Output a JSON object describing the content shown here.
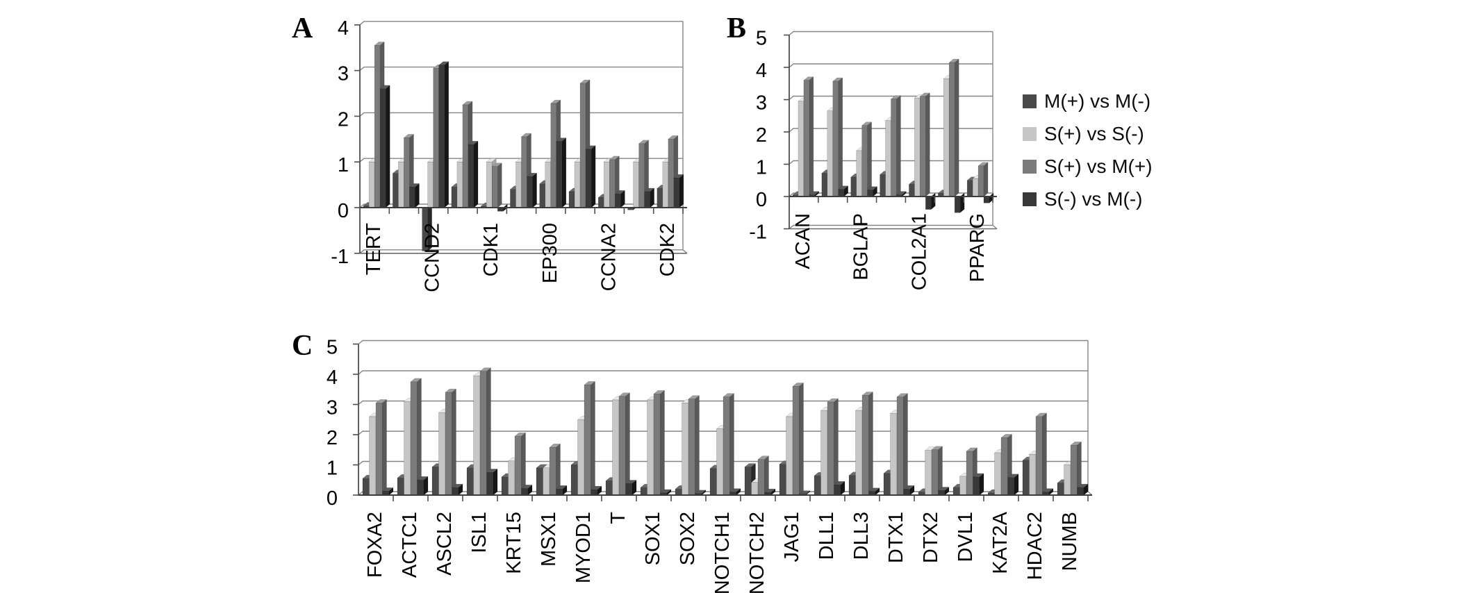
{
  "figure": {
    "panel_letters": {
      "a": "A",
      "b": "B",
      "c": "C"
    }
  },
  "legend": {
    "position": "right-of-panel-b",
    "items": [
      {
        "label": "M(+) vs M(-)",
        "color": "#4a4a4a"
      },
      {
        "label": "S(+) vs S(-)",
        "color": "#c6c6c6"
      },
      {
        "label": "S(+) vs M(+)",
        "color": "#7b7b7b"
      },
      {
        "label": "S(-) vs M(-)",
        "color": "#383838"
      }
    ]
  },
  "chart_data": [
    {
      "panel_letter": "A",
      "type": "bar",
      "bar_style": "3d-clustered",
      "grid": true,
      "ylim": [
        -1,
        4
      ],
      "yticks": [
        4,
        3,
        2,
        1,
        0,
        -1
      ],
      "categories": [
        "TERT",
        "",
        "CCND2",
        "",
        "CDK1",
        "",
        "EP300",
        "",
        "CCNA2",
        "",
        "CDK2"
      ],
      "series": [
        {
          "name": "M(+) vs M(-)",
          "color": "#4a4a4a",
          "values": [
            0.04,
            0.75,
            -0.95,
            0.45,
            0.03,
            0.4,
            0.52,
            0.35,
            0.22,
            -0.05,
            0.42
          ]
        },
        {
          "name": "S(+) vs S(-)",
          "color": "#c6c6c6",
          "values": [
            1.0,
            1.0,
            1.0,
            1.0,
            1.0,
            1.0,
            1.0,
            1.0,
            1.0,
            1.0,
            1.0
          ]
        },
        {
          "name": "S(+) vs M(+)",
          "color": "#7b7b7b",
          "values": [
            3.55,
            1.53,
            3.05,
            2.25,
            0.9,
            1.55,
            2.28,
            2.72,
            1.05,
            1.4,
            1.5
          ]
        },
        {
          "name": "S(-) vs M(-)",
          "color": "#383838",
          "values": [
            2.6,
            0.45,
            3.12,
            1.38,
            -0.08,
            0.68,
            1.45,
            1.28,
            0.3,
            0.35,
            0.65
          ]
        }
      ]
    },
    {
      "panel_letter": "B",
      "type": "bar",
      "bar_style": "3d-clustered",
      "grid": true,
      "ylim": [
        -1,
        5
      ],
      "yticks": [
        5,
        4,
        3,
        2,
        1,
        0,
        -1
      ],
      "categories": [
        "ACAN",
        "",
        "BGLAP",
        "",
        "COL2A1",
        "",
        "PPARG"
      ],
      "series": [
        {
          "name": "M(+) vs M(-)",
          "color": "#4a4a4a",
          "values": [
            0.05,
            0.72,
            0.6,
            0.68,
            0.38,
            0.1,
            0.5
          ]
        },
        {
          "name": "S(+) vs S(-)",
          "color": "#c6c6c6",
          "values": [
            2.95,
            2.65,
            1.42,
            2.35,
            3.05,
            3.65,
            0.55
          ]
        },
        {
          "name": "S(+) vs M(+)",
          "color": "#7b7b7b",
          "values": [
            3.6,
            3.57,
            2.2,
            3.02,
            3.1,
            4.15,
            0.95
          ]
        },
        {
          "name": "S(-) vs M(-)",
          "color": "#383838",
          "values": [
            0.05,
            0.22,
            0.2,
            0.05,
            -0.4,
            -0.5,
            -0.2
          ]
        }
      ]
    },
    {
      "panel_letter": "C",
      "type": "bar",
      "bar_style": "3d-clustered",
      "grid": true,
      "ylim": [
        0,
        5
      ],
      "yticks": [
        5,
        4,
        3,
        2,
        1,
        0
      ],
      "categories": [
        "FOXA2",
        "ACTC1",
        "ASCL2",
        "ISL1",
        "KRT15",
        "MSX1",
        "MYOD1",
        "T",
        "SOX1",
        "SOX2",
        "NOTCH1",
        "NOTCH2",
        "JAG1",
        "DLL1",
        "DLL3",
        "DTX1",
        "DTX2",
        "DVL1",
        "KAT2A",
        "HDAC2",
        "NUMB"
      ],
      "series": [
        {
          "name": "M(+) vs M(-)",
          "color": "#4a4a4a",
          "values": [
            0.55,
            0.57,
            0.93,
            0.9,
            0.6,
            0.9,
            1.0,
            0.47,
            0.25,
            0.2,
            0.88,
            0.93,
            1.02,
            0.64,
            0.65,
            0.72,
            0.1,
            0.25,
            0.07,
            1.15,
            0.4
          ]
        },
        {
          "name": "S(+) vs S(-)",
          "color": "#c6c6c6",
          "values": [
            2.6,
            3.1,
            2.73,
            3.95,
            1.13,
            0.9,
            2.5,
            3.15,
            3.15,
            3.05,
            2.2,
            0.42,
            2.6,
            2.8,
            2.8,
            2.7,
            1.48,
            0.62,
            1.4,
            1.35,
            1.0
          ]
        },
        {
          "name": "S(+) vs M(+)",
          "color": "#7b7b7b",
          "values": [
            3.05,
            3.75,
            3.4,
            4.1,
            1.95,
            1.58,
            3.65,
            3.27,
            3.35,
            3.18,
            3.25,
            1.18,
            3.6,
            3.08,
            3.3,
            3.25,
            1.5,
            1.45,
            1.9,
            2.6,
            1.65
          ]
        },
        {
          "name": "S(-) vs M(-)",
          "color": "#383838",
          "values": [
            0.13,
            0.5,
            0.25,
            0.75,
            0.22,
            0.2,
            0.18,
            0.38,
            0.07,
            0.05,
            0.1,
            0.09,
            0.03,
            0.34,
            0.12,
            0.2,
            0.15,
            0.6,
            0.58,
            0.1,
            0.25
          ]
        }
      ]
    }
  ]
}
